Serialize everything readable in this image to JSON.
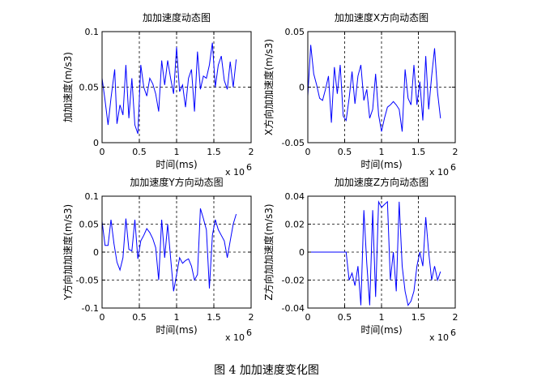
{
  "caption": "图 4  加加速度变化图",
  "x_exponent_label": "x 10",
  "x_exponent_power": "6",
  "chart_data": [
    {
      "type": "line",
      "title": "加加速度动态图",
      "xlabel": "时间(ms)",
      "ylabel": "加加速度(m/s3)",
      "xlim": [
        0,
        2
      ],
      "ylim": [
        0,
        0.1
      ],
      "xticks": [
        "0",
        "0.5",
        "1",
        "1.5",
        "2"
      ],
      "yticks": [
        "0",
        "0.05",
        "0.1"
      ],
      "ytick_values": [
        0,
        0.05,
        0.1
      ],
      "grid": "dashed lines at x=0.5, 1, 1.5 and middle y",
      "color": "#0000ff",
      "x": [
        0.0,
        0.04,
        0.08,
        0.12,
        0.17,
        0.2,
        0.24,
        0.28,
        0.32,
        0.36,
        0.4,
        0.44,
        0.48,
        0.52,
        0.56,
        0.6,
        0.64,
        0.68,
        0.72,
        0.76,
        0.8,
        0.84,
        0.88,
        0.92,
        0.96,
        1.0,
        1.04,
        1.08,
        1.12,
        1.16,
        1.2,
        1.24,
        1.28,
        1.32,
        1.36,
        1.4,
        1.44,
        1.48,
        1.52,
        1.56,
        1.6,
        1.64,
        1.68,
        1.72,
        1.76,
        1.8
      ],
      "y": [
        0.058,
        0.038,
        0.016,
        0.04,
        0.066,
        0.017,
        0.034,
        0.025,
        0.07,
        0.022,
        0.058,
        0.016,
        0.008,
        0.07,
        0.05,
        0.042,
        0.058,
        0.053,
        0.044,
        0.028,
        0.074,
        0.052,
        0.074,
        0.058,
        0.044,
        0.086,
        0.046,
        0.052,
        0.032,
        0.058,
        0.066,
        0.028,
        0.082,
        0.048,
        0.06,
        0.058,
        0.07,
        0.09,
        0.05,
        0.07,
        0.078,
        0.056,
        0.048,
        0.073,
        0.05,
        0.075
      ]
    },
    {
      "type": "line",
      "title": "加加速度X方向动态图",
      "xlabel": "时间(ms)",
      "ylabel": "X方向加加速度(m/s3)",
      "xlim": [
        0,
        2
      ],
      "ylim": [
        -0.05,
        0.05
      ],
      "xticks": [
        "0",
        "0.5",
        "1",
        "1.5",
        "2"
      ],
      "yticks": [
        "-0.05",
        "0",
        "0.05"
      ],
      "ytick_values": [
        -0.05,
        0,
        0.05
      ],
      "grid": "dashed lines at x=0.5, 1, 1.5 and y=0",
      "color": "#0000ff",
      "x": [
        0.0,
        0.04,
        0.08,
        0.12,
        0.16,
        0.2,
        0.24,
        0.28,
        0.32,
        0.36,
        0.4,
        0.44,
        0.48,
        0.52,
        0.56,
        0.6,
        0.64,
        0.68,
        0.72,
        0.76,
        0.8,
        0.84,
        0.88,
        0.92,
        0.96,
        1.0,
        1.04,
        1.08,
        1.12,
        1.16,
        1.2,
        1.24,
        1.28,
        1.32,
        1.36,
        1.4,
        1.44,
        1.48,
        1.52,
        1.56,
        1.6,
        1.64,
        1.68,
        1.72,
        1.76,
        1.8
      ],
      "y": [
        -0.008,
        0.038,
        0.012,
        0.002,
        -0.01,
        -0.012,
        -0.002,
        0.01,
        -0.032,
        0.018,
        -0.006,
        0.02,
        -0.026,
        -0.03,
        -0.01,
        0.014,
        -0.015,
        0.01,
        0.02,
        -0.012,
        -0.002,
        -0.028,
        -0.02,
        0.012,
        -0.025,
        -0.04,
        -0.028,
        -0.018,
        -0.016,
        -0.013,
        -0.016,
        -0.02,
        -0.04,
        0.016,
        -0.01,
        -0.016,
        0.02,
        -0.016,
        0.005,
        -0.03,
        0.028,
        -0.02,
        0.01,
        0.035,
        -0.005,
        -0.028
      ]
    },
    {
      "type": "line",
      "title": "加加速度Y方向动态图",
      "xlabel": "时间(ms)",
      "ylabel": "Y方向加加速度(m/s3)",
      "xlim": [
        0,
        2
      ],
      "ylim": [
        -0.1,
        0.1
      ],
      "xticks": [
        "0",
        "0.5",
        "1",
        "1.5",
        "2"
      ],
      "yticks": [
        "-0.1",
        "-0.05",
        "0",
        "0.05",
        "0.1"
      ],
      "ytick_values": [
        -0.1,
        -0.05,
        0,
        0.05,
        0.1
      ],
      "grid": "dashed lines at x=0.5, 1, 1.5 and y=-0.05, 0, 0.05",
      "color": "#0000ff",
      "x": [
        0.0,
        0.04,
        0.08,
        0.12,
        0.16,
        0.2,
        0.24,
        0.28,
        0.32,
        0.36,
        0.4,
        0.44,
        0.48,
        0.52,
        0.56,
        0.6,
        0.64,
        0.68,
        0.72,
        0.76,
        0.8,
        0.84,
        0.88,
        0.92,
        0.96,
        1.0,
        1.04,
        1.08,
        1.12,
        1.16,
        1.2,
        1.24,
        1.28,
        1.32,
        1.36,
        1.4,
        1.44,
        1.48,
        1.52,
        1.56,
        1.6,
        1.64,
        1.68,
        1.72,
        1.76,
        1.8
      ],
      "y": [
        0.055,
        0.012,
        0.012,
        0.058,
        0.015,
        -0.018,
        -0.032,
        -0.01,
        0.06,
        0.005,
        0.002,
        0.058,
        -0.012,
        0.02,
        0.03,
        0.042,
        0.035,
        0.024,
        0.008,
        -0.05,
        0.058,
        -0.01,
        0.05,
        -0.01,
        -0.07,
        -0.04,
        -0.01,
        -0.02,
        -0.015,
        -0.012,
        -0.025,
        -0.05,
        -0.04,
        0.078,
        0.06,
        0.04,
        -0.065,
        0.03,
        0.058,
        0.04,
        0.03,
        0.02,
        -0.01,
        0.02,
        0.05,
        0.068
      ]
    },
    {
      "type": "line",
      "title": "加加速度Z方向动态图",
      "xlabel": "时间(ms)",
      "ylabel": "Z方向加加速度(m/s3)",
      "xlim": [
        0,
        2
      ],
      "ylim": [
        -0.04,
        0.04
      ],
      "xticks": [
        "0",
        "0.5",
        "1",
        "1.5",
        "2"
      ],
      "yticks": [
        "-0.04",
        "-0.02",
        "0",
        "0.02",
        "0.04"
      ],
      "ytick_values": [
        -0.04,
        -0.02,
        0,
        0.02,
        0.04
      ],
      "grid": "dashed lines at x=0.5, 1, 1.5 and y=-0.02, 0, 0.02",
      "color": "#0000ff",
      "x": [
        0.0,
        0.52,
        0.56,
        0.6,
        0.64,
        0.68,
        0.72,
        0.76,
        0.8,
        0.84,
        0.88,
        0.92,
        0.96,
        1.0,
        1.04,
        1.08,
        1.12,
        1.16,
        1.2,
        1.24,
        1.28,
        1.32,
        1.36,
        1.4,
        1.44,
        1.48,
        1.52,
        1.56,
        1.6,
        1.64,
        1.68,
        1.72,
        1.76,
        1.8
      ],
      "y": [
        0.0,
        0.0,
        -0.02,
        -0.015,
        -0.024,
        -0.01,
        -0.038,
        0.03,
        -0.008,
        -0.038,
        0.03,
        -0.032,
        0.036,
        0.032,
        0.034,
        0.036,
        -0.02,
        0.0,
        -0.028,
        0.036,
        -0.01,
        -0.028,
        -0.038,
        -0.035,
        -0.028,
        -0.01,
        0.0,
        -0.01,
        0.025,
        0.0,
        -0.02,
        -0.01,
        -0.02,
        -0.014
      ]
    }
  ]
}
